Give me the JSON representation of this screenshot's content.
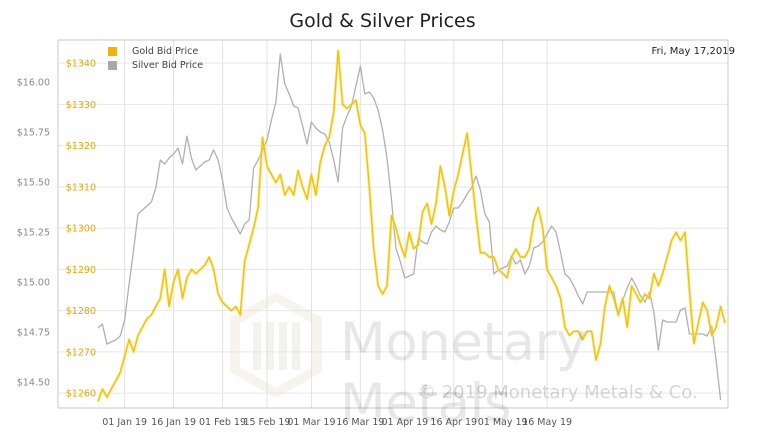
{
  "chart_data": {
    "type": "line",
    "title": "Gold & Silver Prices",
    "date_label": "Fri, May 17,2019",
    "x_ticks": [
      "01 Jan 19",
      "16 Jan 19",
      "01 Feb 19",
      "15 Feb 19",
      "01 Mar 19",
      "16 Mar 19",
      "01 Apr 19",
      "16 Apr 19",
      "01 May 19",
      "16 May 19"
    ],
    "x_tick_index": [
      6,
      17,
      28,
      38,
      48,
      59,
      69,
      80,
      91,
      101
    ],
    "y_left": {
      "label": "",
      "ticks": [
        "$14.50",
        "$14.75",
        "$15.00",
        "$15.25",
        "$15.50",
        "$15.75",
        "$16.00"
      ],
      "values": [
        14.5,
        14.75,
        15.0,
        15.25,
        15.5,
        15.75,
        16.0
      ],
      "range": [
        14.37,
        16.21
      ]
    },
    "y_right": {
      "label": "",
      "ticks": [
        "$1260",
        "$1270",
        "$1280",
        "$1290",
        "$1300",
        "$1310",
        "$1320",
        "$1330",
        "$1340"
      ],
      "values": [
        1260,
        1270,
        1280,
        1290,
        1300,
        1310,
        1320,
        1330,
        1340
      ],
      "range": [
        1256.4,
        1345.6
      ]
    },
    "grid": true,
    "legend_position": "top-left",
    "series": [
      {
        "name": "Gold Bid Price",
        "axis": "right",
        "color": "#f2c200",
        "values": [
          1258,
          1261,
          1259,
          1261,
          1263,
          1265,
          1269,
          1273,
          1270,
          1274,
          1276,
          1278,
          1279,
          1281,
          1283,
          1290,
          1281,
          1287,
          1290,
          1283,
          1288,
          1290,
          1289,
          1290,
          1291,
          1293,
          1290,
          1284,
          1282,
          1281,
          1280,
          1281,
          1279,
          1292,
          1296,
          1300,
          1305,
          1322,
          1315,
          1313,
          1311,
          1313,
          1308,
          1310,
          1308,
          1314,
          1310,
          1307,
          1313,
          1308,
          1316,
          1320,
          1322,
          1328,
          1343,
          1330,
          1329,
          1330,
          1331,
          1325,
          1323,
          1310,
          1295,
          1286,
          1284,
          1286,
          1303,
          1300,
          1296,
          1293,
          1299,
          1295,
          1296,
          1304,
          1306,
          1301,
          1306,
          1315,
          1310,
          1303,
          1309,
          1313,
          1318,
          1323,
          1313,
          1303,
          1294,
          1294,
          1293,
          1293,
          1290,
          1289,
          1288,
          1293,
          1295,
          1293,
          1293,
          1295,
          1302,
          1305,
          1300,
          1290,
          1288,
          1286,
          1283,
          1276,
          1274,
          1275,
          1275,
          1273,
          1275,
          1275,
          1268,
          1272,
          1281,
          1286,
          1283,
          1279,
          1283,
          1276,
          1286,
          1284,
          1282,
          1284,
          1283,
          1289,
          1286,
          1289,
          1293,
          1297,
          1299,
          1297,
          1299,
          1285,
          1272,
          1277,
          1282,
          1280,
          1274,
          1276,
          1281,
          1277
        ]
      },
      {
        "name": "Silver Bid Price",
        "axis": "left",
        "color": "#b0b0b0",
        "values": [
          14.77,
          14.79,
          14.69,
          14.7,
          14.71,
          14.73,
          14.81,
          14.99,
          15.16,
          15.34,
          15.36,
          15.38,
          15.4,
          15.47,
          15.61,
          15.59,
          15.62,
          15.64,
          15.67,
          15.59,
          15.73,
          15.62,
          15.56,
          15.58,
          15.6,
          15.61,
          15.66,
          15.61,
          15.51,
          15.37,
          15.32,
          15.28,
          15.24,
          15.29,
          15.31,
          15.57,
          15.61,
          15.66,
          15.71,
          15.81,
          15.9,
          16.14,
          15.99,
          15.94,
          15.88,
          15.87,
          15.78,
          15.69,
          15.8,
          15.77,
          15.75,
          15.74,
          15.7,
          15.61,
          15.5,
          15.77,
          15.83,
          15.88,
          15.98,
          16.08,
          15.94,
          15.95,
          15.92,
          15.86,
          15.76,
          15.62,
          15.41,
          15.17,
          15.1,
          15.02,
          15.03,
          15.04,
          15.22,
          15.2,
          15.19,
          15.25,
          15.28,
          15.26,
          15.25,
          15.3,
          15.37,
          15.37,
          15.4,
          15.44,
          15.47,
          15.53,
          15.46,
          15.34,
          15.3,
          15.04,
          15.06,
          15.07,
          15.08,
          15.13,
          15.09,
          15.11,
          15.04,
          15.08,
          15.17,
          15.18,
          15.2,
          15.24,
          15.28,
          15.25,
          15.15,
          15.04,
          15.02,
          14.98,
          14.93,
          14.89,
          14.95,
          14.95,
          14.95,
          14.95,
          14.95,
          14.95,
          14.95,
          14.83,
          14.91,
          14.97,
          15.02,
          14.98,
          14.93,
          14.9,
          14.95,
          14.85,
          14.66,
          14.81,
          14.8,
          14.8,
          14.8,
          14.86,
          14.87,
          14.74,
          14.74,
          14.74,
          14.74,
          14.73,
          14.78,
          14.61,
          14.41
        ]
      }
    ]
  }
}
